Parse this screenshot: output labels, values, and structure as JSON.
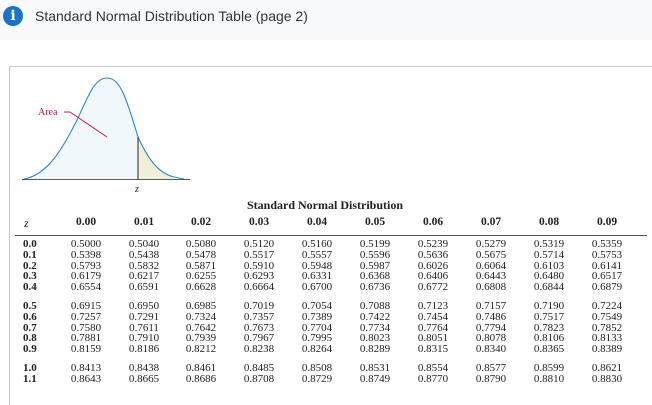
{
  "dialog": {
    "title": "Standard Normal Distribution Table (page 2)",
    "info_icon": "i"
  },
  "figure": {
    "area_label": "Area",
    "z_label": "z",
    "curve_color": "#2f86c9",
    "shade_color": "#eef0dc"
  },
  "table": {
    "title": "Standard Normal Distribution",
    "z_header": "z",
    "columns": [
      "0.00",
      "0.01",
      "0.02",
      "0.03",
      "0.04",
      "0.05",
      "0.06",
      "0.07",
      "0.08",
      "0.09"
    ],
    "rows": [
      {
        "z": "0.0",
        "values": [
          "0.5000",
          "0.5040",
          "0.5080",
          "0.5120",
          "0.5160",
          "0.5199",
          "0.5239",
          "0.5279",
          "0.5319",
          "0.5359"
        ]
      },
      {
        "z": "0.1",
        "values": [
          "0.5398",
          "0.5438",
          "0.5478",
          "0.5517",
          "0.5557",
          "0.5596",
          "0.5636",
          "0.5675",
          "0.5714",
          "0.5753"
        ]
      },
      {
        "z": "0.2",
        "values": [
          "0.5793",
          "0.5832",
          "0.5871",
          "0.5910",
          "0.5948",
          "0.5987",
          "0.6026",
          "0.6064",
          "0.6103",
          "0.6141"
        ]
      },
      {
        "z": "0.3",
        "values": [
          "0.6179",
          "0.6217",
          "0.6255",
          "0.6293",
          "0.6331",
          "0.6368",
          "0.6406",
          "0.6443",
          "0.6480",
          "0.6517"
        ]
      },
      {
        "z": "0.4",
        "values": [
          "0.6554",
          "0.6591",
          "0.6628",
          "0.6664",
          "0.6700",
          "0.6736",
          "0.6772",
          "0.6808",
          "0.6844",
          "0.6879"
        ]
      },
      {
        "z": "0.5",
        "values": [
          "0.6915",
          "0.6950",
          "0.6985",
          "0.7019",
          "0.7054",
          "0.7088",
          "0.7123",
          "0.7157",
          "0.7190",
          "0.7224"
        ]
      },
      {
        "z": "0.6",
        "values": [
          "0.7257",
          "0.7291",
          "0.7324",
          "0.7357",
          "0.7389",
          "0.7422",
          "0.7454",
          "0.7486",
          "0.7517",
          "0.7549"
        ]
      },
      {
        "z": "0.7",
        "values": [
          "0.7580",
          "0.7611",
          "0.7642",
          "0.7673",
          "0.7704",
          "0.7734",
          "0.7764",
          "0.7794",
          "0.7823",
          "0.7852"
        ]
      },
      {
        "z": "0.8",
        "values": [
          "0.7881",
          "0.7910",
          "0.7939",
          "0.7967",
          "0.7995",
          "0.8023",
          "0.8051",
          "0.8078",
          "0.8106",
          "0.8133"
        ]
      },
      {
        "z": "0.9",
        "values": [
          "0.8159",
          "0.8186",
          "0.8212",
          "0.8238",
          "0.8264",
          "0.8289",
          "0.8315",
          "0.8340",
          "0.8365",
          "0.8389"
        ]
      },
      {
        "z": "1.0",
        "values": [
          "0.8413",
          "0.8438",
          "0.8461",
          "0.8485",
          "0.8508",
          "0.8531",
          "0.8554",
          "0.8577",
          "0.8599",
          "0.8621"
        ]
      },
      {
        "z": "1.1",
        "values": [
          "0.8643",
          "0.8665",
          "0.8686",
          "0.8708",
          "0.8729",
          "0.8749",
          "0.8770",
          "0.8790",
          "0.8810",
          "0.8830"
        ]
      }
    ]
  }
}
